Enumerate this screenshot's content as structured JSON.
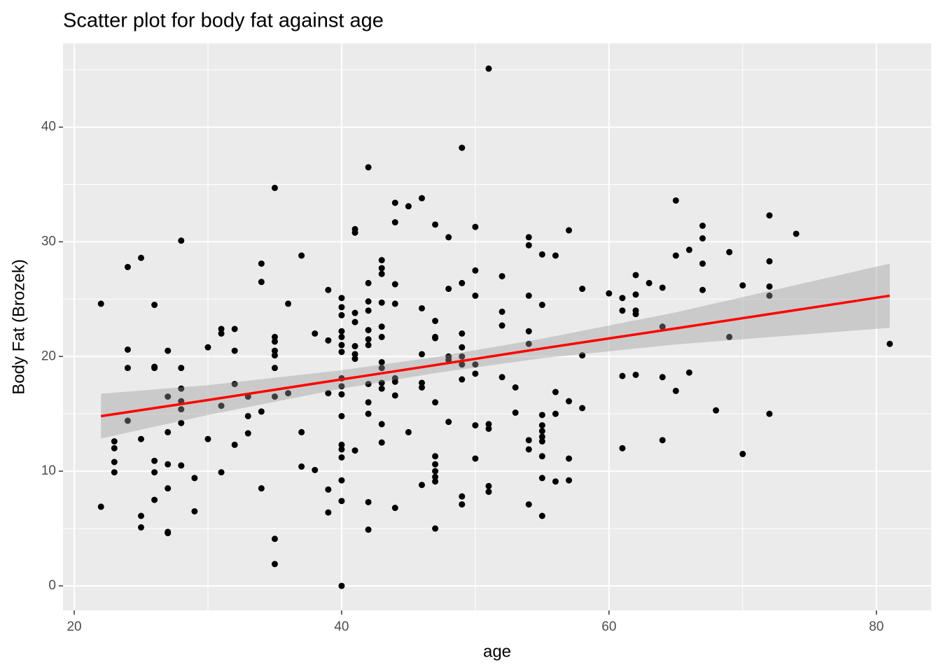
{
  "chart_data": {
    "type": "scatter",
    "title": "Scatter plot for body fat against age",
    "x_label": "age",
    "y_label": "Body Fat (Brozek)",
    "xlim": [
      19.16,
      84.1
    ],
    "ylim": [
      -2.14,
      47.3
    ],
    "xticks": [
      20,
      40,
      60,
      80
    ],
    "yticks": [
      0,
      10,
      20,
      30,
      40
    ],
    "grid": true,
    "point_color": "#000000",
    "x": [
      22,
      22,
      23,
      23,
      23,
      23,
      24,
      24,
      24,
      24,
      25,
      25,
      25,
      25,
      26,
      26,
      26,
      26,
      26,
      26,
      27,
      27,
      27,
      27,
      27,
      27,
      27,
      28,
      28,
      28,
      28,
      28,
      28,
      28,
      29,
      29,
      30,
      30,
      31,
      31,
      31,
      31,
      32,
      32,
      32,
      32,
      33,
      33,
      33,
      34,
      34,
      34,
      34,
      35,
      35,
      35,
      35,
      35,
      35,
      35,
      35,
      35,
      36,
      36,
      37,
      37,
      37,
      38,
      38,
      39,
      39,
      39,
      39,
      39,
      40,
      40,
      40,
      40,
      40,
      40,
      40,
      40,
      40,
      40,
      40,
      40,
      40,
      40,
      40,
      40,
      40,
      41,
      41,
      41,
      41,
      41,
      41,
      41,
      41,
      42,
      42,
      42,
      42,
      42,
      42,
      42,
      42,
      42,
      42,
      42,
      42,
      43,
      43,
      43,
      43,
      43,
      43,
      43,
      43,
      43,
      43,
      43,
      43,
      44,
      44,
      44,
      44,
      44,
      44,
      44,
      44,
      45,
      45,
      46,
      46,
      46,
      46,
      46,
      46,
      47,
      47,
      47,
      47,
      47,
      47,
      47,
      47,
      47,
      47,
      47,
      48,
      48,
      48,
      48,
      48,
      49,
      49,
      49,
      49,
      49,
      49,
      49,
      49,
      49,
      50,
      50,
      50,
      50,
      50,
      50,
      50,
      51,
      51,
      51,
      51,
      51,
      52,
      52,
      52,
      52,
      53,
      53,
      54,
      54,
      54,
      54,
      54,
      54,
      54,
      54,
      55,
      55,
      55,
      55,
      55,
      55,
      55,
      55,
      55,
      55,
      56,
      56,
      56,
      56,
      57,
      57,
      57,
      57,
      58,
      58,
      58,
      60,
      61,
      61,
      61,
      61,
      62,
      62,
      62,
      62,
      62,
      63,
      64,
      64,
      64,
      64,
      65,
      65,
      65,
      66,
      66,
      67,
      67,
      67,
      67,
      68,
      69,
      69,
      70,
      70,
      72,
      72,
      72,
      72,
      72,
      74,
      81
    ],
    "values": [
      24.6,
      6.9,
      12.6,
      12.0,
      10.8,
      9.9,
      27.8,
      20.6,
      19.0,
      14.4,
      28.6,
      12.8,
      6.1,
      5.1,
      24.5,
      19.1,
      19.0,
      10.9,
      9.9,
      7.5,
      20.5,
      16.5,
      13.4,
      10.6,
      8.5,
      4.7,
      4.6,
      30.1,
      19.0,
      17.2,
      16.1,
      15.4,
      14.2,
      10.5,
      9.4,
      6.5,
      20.8,
      12.8,
      22.4,
      22.0,
      15.7,
      9.9,
      22.4,
      20.5,
      17.6,
      12.3,
      16.5,
      14.8,
      13.3,
      28.1,
      26.5,
      15.2,
      8.5,
      34.7,
      21.7,
      21.3,
      20.5,
      20.1,
      19.0,
      16.5,
      4.1,
      1.9,
      24.6,
      16.8,
      28.8,
      13.4,
      10.4,
      22.0,
      10.1,
      25.8,
      21.4,
      16.8,
      8.4,
      6.4,
      25.1,
      24.3,
      23.6,
      22.2,
      21.7,
      21.0,
      20.4,
      18.1,
      17.4,
      16.7,
      14.8,
      12.3,
      11.9,
      11.2,
      9.2,
      7.4,
      0,
      31.1,
      30.8,
      23.8,
      23.0,
      20.9,
      20.2,
      19.8,
      11.8,
      36.5,
      26.4,
      24.8,
      24.0,
      22.3,
      21.5,
      21.0,
      17.6,
      16.0,
      15.0,
      7.3,
      4.9,
      28.4,
      27.7,
      27.2,
      24.7,
      22.6,
      21.7,
      19.5,
      19.0,
      17.7,
      17.2,
      14.1,
      12.5,
      33.4,
      31.7,
      26.3,
      24.6,
      18.1,
      17.8,
      16.6,
      6.8,
      33.1,
      13.4,
      33.8,
      24.2,
      20.2,
      17.7,
      17.3,
      8.8,
      31.5,
      23.1,
      21.7,
      21.6,
      16.0,
      11.3,
      10.6,
      10.0,
      9.5,
      9.1,
      5.0,
      30.4,
      25.9,
      20.0,
      19.7,
      14.3,
      38.2,
      26.4,
      22.0,
      20.8,
      20.0,
      19.3,
      18.0,
      7.8,
      7.1,
      31.3,
      27.5,
      25.3,
      19.3,
      18.5,
      14.0,
      11.1,
      45.1,
      14.1,
      13.7,
      8.7,
      8.2,
      27.0,
      23.9,
      22.7,
      18.2,
      17.3,
      15.1,
      30.4,
      29.7,
      25.3,
      22.2,
      21.1,
      12.7,
      11.9,
      7.1,
      28.9,
      24.5,
      14.9,
      14.0,
      13.5,
      13.0,
      12.6,
      11.3,
      9.4,
      6.1,
      28.8,
      16.9,
      15.0,
      9.1,
      31.0,
      16.1,
      11.1,
      9.2,
      25.9,
      20.1,
      15.5,
      25.5,
      25.1,
      24.0,
      18.3,
      12.0,
      27.1,
      25.4,
      24.0,
      23.7,
      18.4,
      26.4,
      26.0,
      22.6,
      18.2,
      12.7,
      33.6,
      28.8,
      17.0,
      29.3,
      18.6,
      31.4,
      30.3,
      28.1,
      25.8,
      15.3,
      29.1,
      21.7,
      26.2,
      11.5,
      32.3,
      28.3,
      26.1,
      25.3,
      15.0,
      30.7,
      21.1
    ],
    "fit": {
      "x": [
        22,
        30,
        40,
        47,
        55,
        65,
        81
      ],
      "values": [
        14.8,
        16.2,
        18.0,
        19.25,
        20.7,
        22.45,
        25.3
      ],
      "lower": [
        12.85,
        14.9,
        17.2,
        18.55,
        19.85,
        21.05,
        22.5
      ],
      "upper": [
        16.75,
        17.5,
        18.8,
        19.95,
        21.55,
        23.85,
        28.1
      ],
      "color": "#ff0000",
      "band_color": "#999999"
    }
  }
}
